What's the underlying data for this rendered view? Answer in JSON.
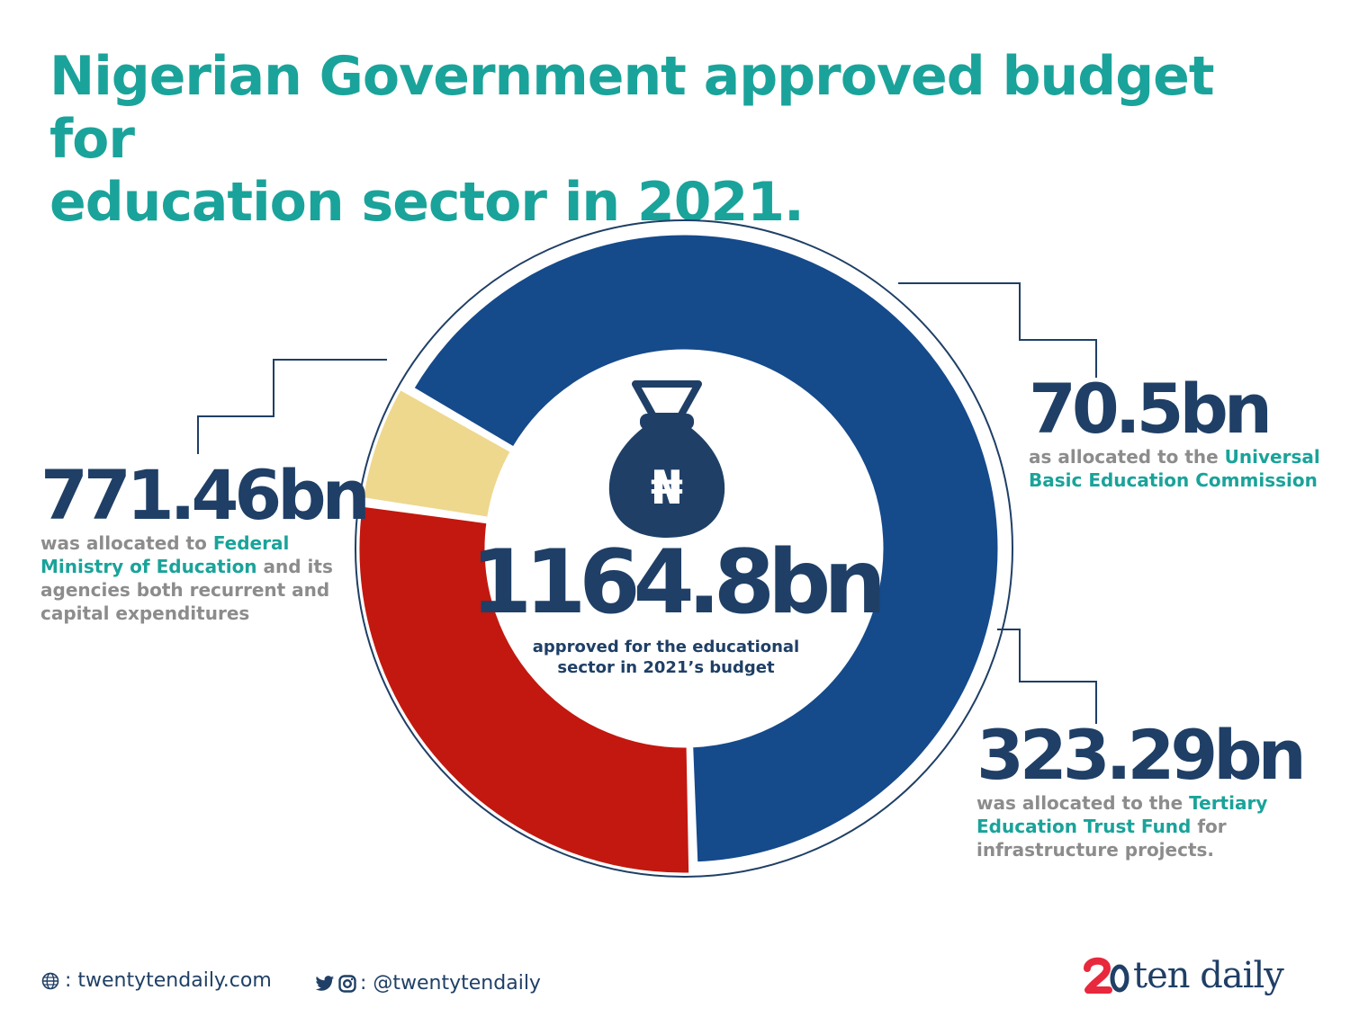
{
  "title": {
    "line1": "Nigerian Government approved budget for",
    "line2": "education sector in 2021."
  },
  "center": {
    "total": "1164.8bn",
    "desc_line1": "approved for the educational",
    "desc_line2": "sector in 2021’s budget",
    "icon": "money-bag-naira-icon",
    "currency_symbol": "₦"
  },
  "callouts": {
    "left": {
      "value": "771.46bn",
      "pre": "was allocated to ",
      "highlight": "Federal Ministry of Education",
      "post": " and its agencies both recurrent and capital expenditures"
    },
    "yellow": {
      "value": "70.5bn",
      "pre": "as allocated to the ",
      "highlight": "Universal Basic Education Commission",
      "post": ""
    },
    "red": {
      "value": "323.29bn",
      "pre": "was allocated to the ",
      "highlight": "Tertiary Education Trust Fund",
      "post": " for infrastructure projects."
    }
  },
  "footer": {
    "website_sep": ": ",
    "website": "twentytendaily.com",
    "social_sep": ": ",
    "social": "@twentytendaily",
    "website_icon": "globe-icon",
    "social_icons": [
      "twitter-icon",
      "instagram-icon"
    ],
    "brand_text": "ten daily"
  },
  "colors": {
    "title": "#1aa39a",
    "navy": "#1f3f66",
    "gray": "#8c8c8c",
    "blue": "#154a8b",
    "red": "#c2180f",
    "yellow": "#eed88e",
    "brand_red": "#e8283c"
  },
  "chart_data": {
    "type": "pie",
    "donut": true,
    "total": 1164.8,
    "categories": [
      "Federal Ministry of Education",
      "Tertiary Education Trust Fund",
      "Universal Basic Education Commission"
    ],
    "values": [
      771.46,
      323.29,
      70.5
    ],
    "colors": [
      "#154a8b",
      "#c2180f",
      "#eed88e"
    ],
    "unit": "bn"
  }
}
